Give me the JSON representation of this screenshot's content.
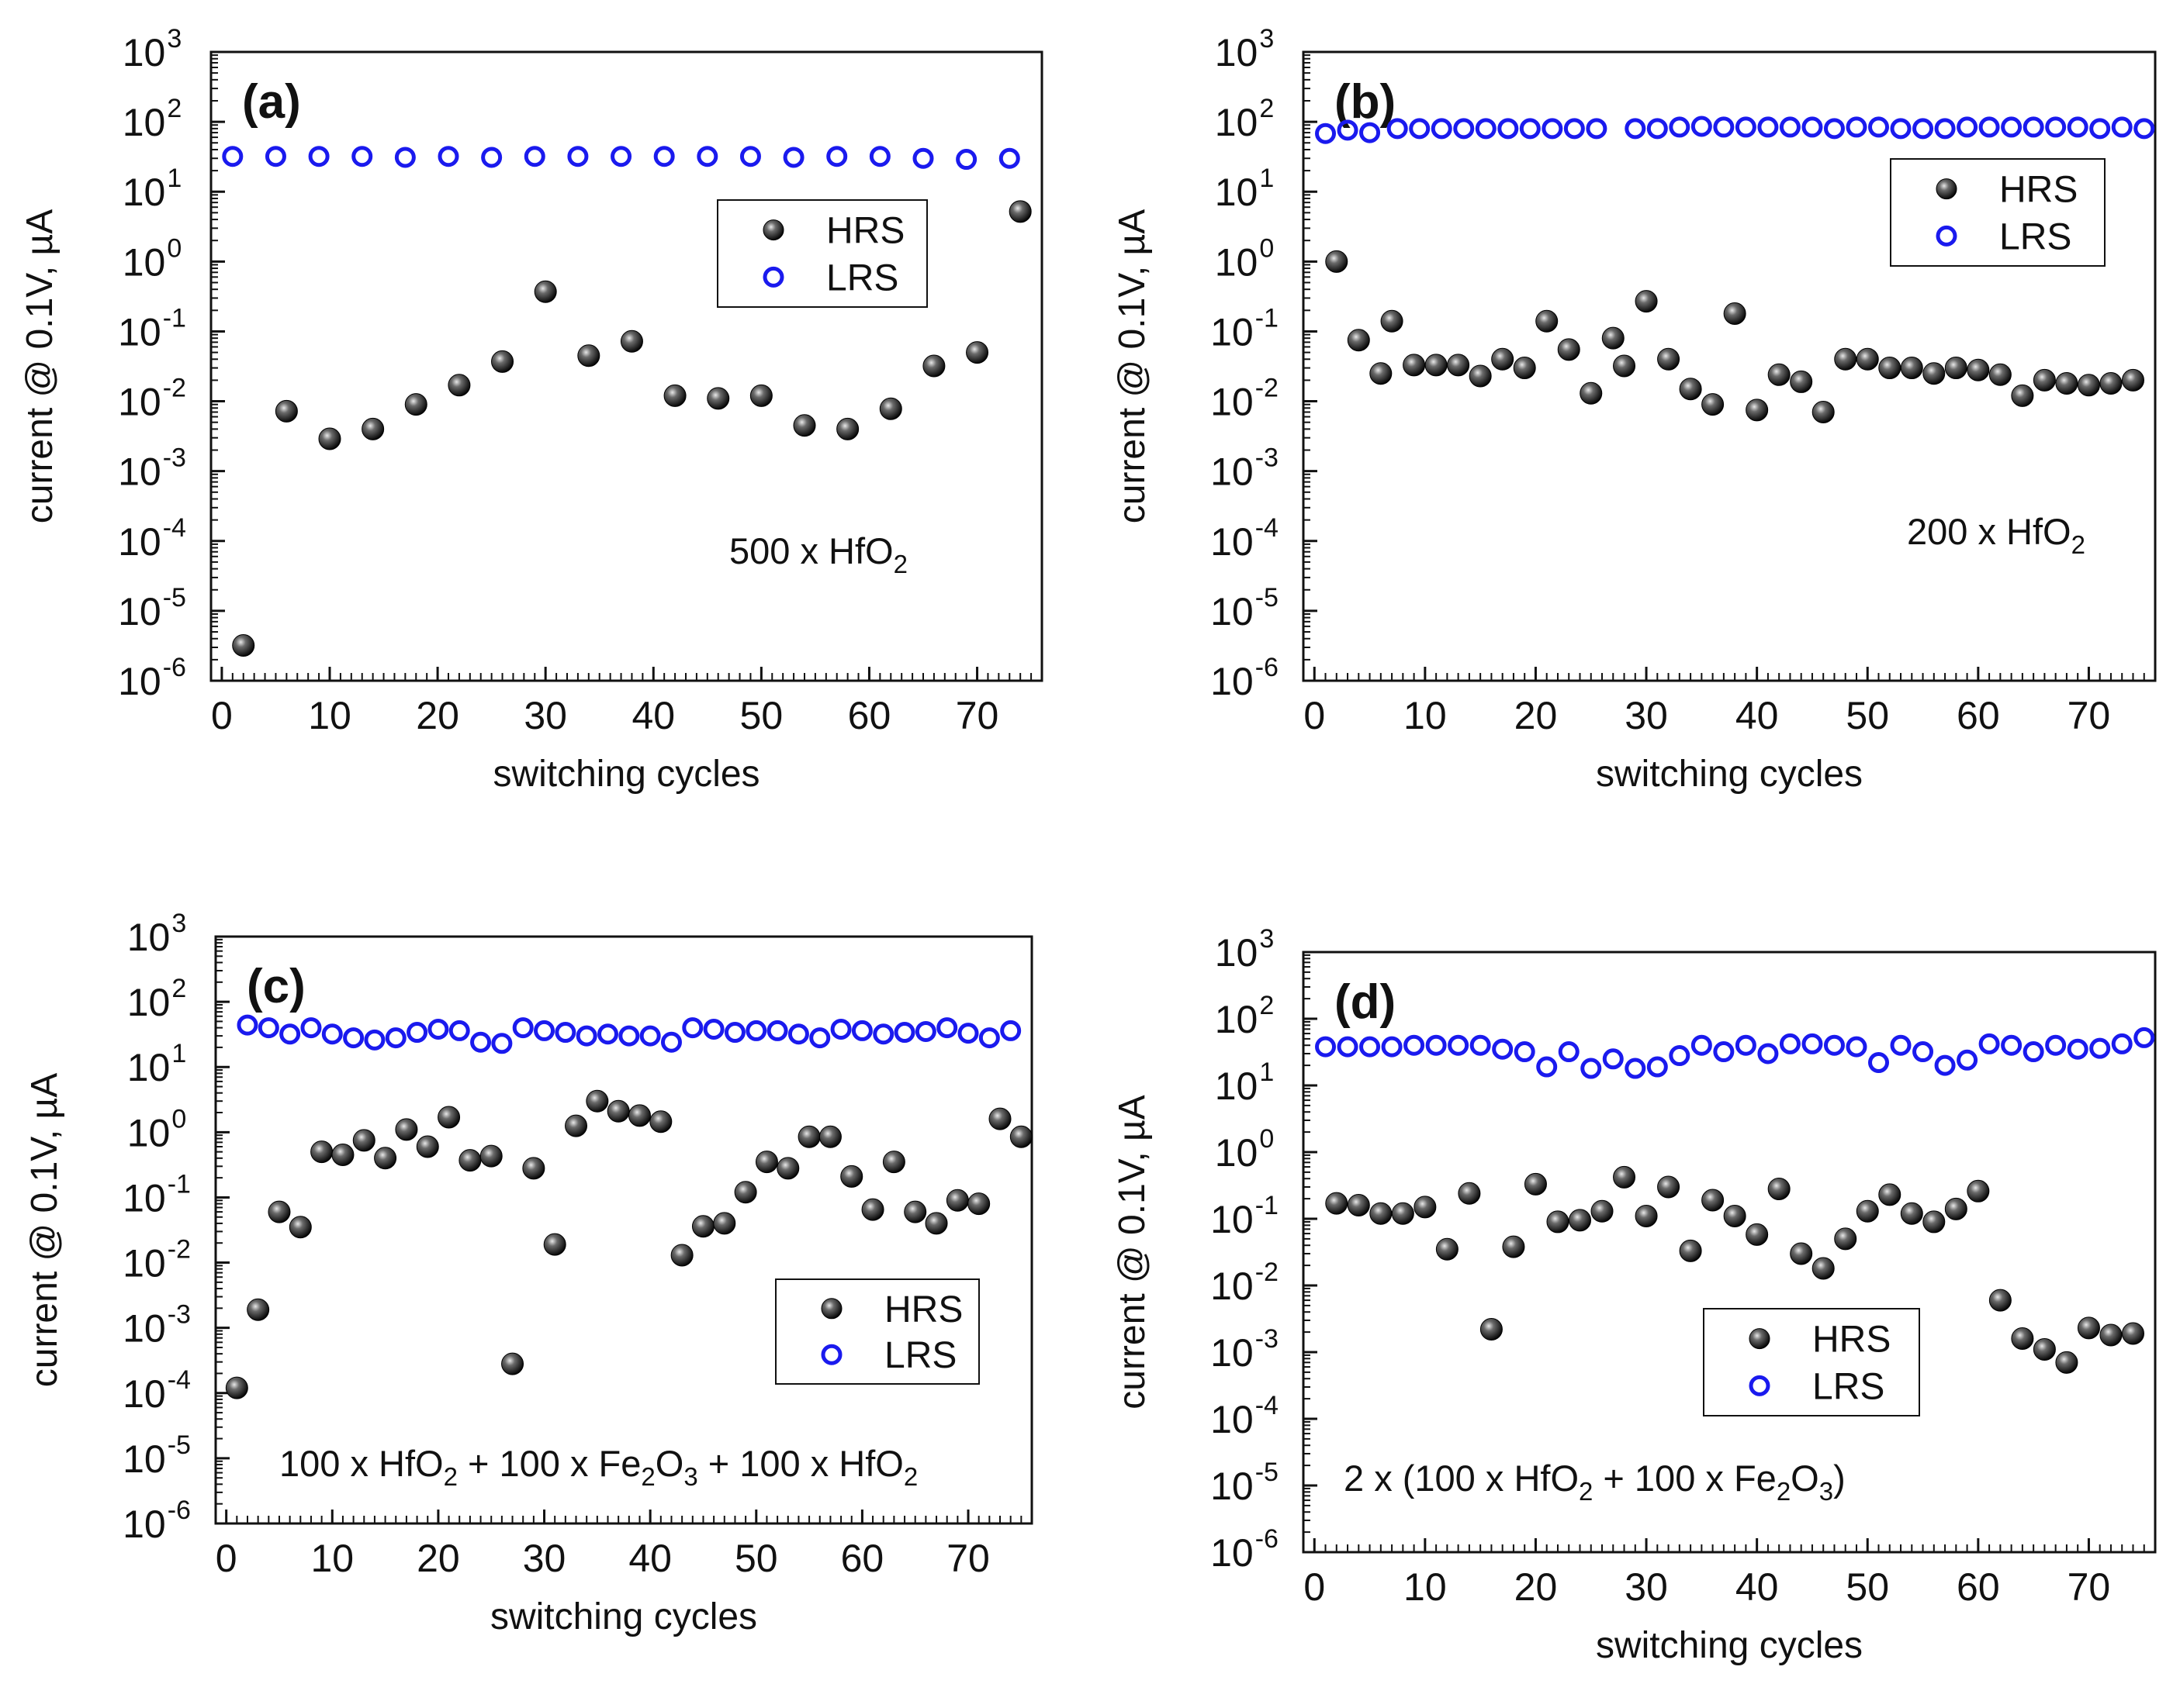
{
  "figure": {
    "colors": {
      "hrs": "#222222",
      "lrs": "#1a1aee",
      "axis": "#111111"
    }
  },
  "chart_data": [
    {
      "type": "scatter",
      "panel_label": "(a)",
      "annotation_parts": [
        "500 x HfO",
        "2"
      ],
      "xlabel": "switching cycles",
      "ylabel": "current @ 0.1V, µA",
      "yscale": "log",
      "xlim": [
        -1,
        76
      ],
      "ylim_exp": [
        -6,
        3
      ],
      "xticks": [
        "0",
        "10",
        "20",
        "30",
        "40",
        "50",
        "60",
        "70"
      ],
      "yticks": [
        "10",
        "10",
        "10",
        "10",
        "10",
        "10",
        "10",
        "10",
        "10",
        "10"
      ],
      "yexps": [
        "-6",
        "-5",
        "-4",
        "-3",
        "-2",
        "-1",
        "0",
        "1",
        "2",
        "3"
      ],
      "legend": {
        "hrs": "HRS",
        "lrs": "LRS",
        "position": "upper-right"
      },
      "series": [
        {
          "name": "HRS",
          "marker": "filled-sphere",
          "x": [
            2,
            6,
            10,
            14,
            18,
            22,
            26,
            30,
            34,
            38,
            42,
            46,
            50,
            54,
            58,
            62,
            66,
            70,
            74
          ],
          "y": [
            3.2e-06,
            0.0072,
            0.0029,
            0.004,
            0.009,
            0.017,
            0.037,
            0.37,
            0.045,
            0.072,
            0.012,
            0.011,
            0.012,
            0.0045,
            0.004,
            0.0078,
            0.032,
            0.05,
            5.2
          ]
        },
        {
          "name": "LRS",
          "marker": "open-circle",
          "x": [
            1,
            5,
            9,
            13,
            17,
            21,
            25,
            29,
            33,
            37,
            41,
            45,
            49,
            53,
            57,
            61,
            65,
            69,
            73
          ],
          "y": [
            32,
            32,
            32,
            32,
            31,
            32,
            31,
            32,
            32,
            32,
            32,
            32,
            32,
            31,
            32,
            32,
            30,
            29,
            30
          ]
        }
      ]
    },
    {
      "type": "scatter",
      "panel_label": "(b)",
      "annotation_parts": [
        "200 x HfO",
        "2"
      ],
      "xlabel": "switching cycles",
      "ylabel": "current @ 0.1V, µA",
      "yscale": "log",
      "xlim": [
        -1,
        76
      ],
      "ylim_exp": [
        -6,
        3
      ],
      "xticks": [
        "0",
        "10",
        "20",
        "30",
        "40",
        "50",
        "60",
        "70"
      ],
      "yticks": [
        "10",
        "10",
        "10",
        "10",
        "10",
        "10",
        "10",
        "10",
        "10",
        "10"
      ],
      "yexps": [
        "-6",
        "-5",
        "-4",
        "-3",
        "-2",
        "-1",
        "0",
        "1",
        "2",
        "3"
      ],
      "legend": {
        "hrs": "HRS",
        "lrs": "LRS",
        "position": "upper-right"
      },
      "series": [
        {
          "name": "HRS",
          "marker": "filled-sphere",
          "x": [
            2,
            4,
            6,
            7,
            9,
            11,
            13,
            15,
            17,
            19,
            21,
            23,
            25,
            27,
            28,
            30,
            32,
            34,
            36,
            38,
            40,
            42,
            44,
            46,
            48,
            50,
            52,
            54,
            56,
            58,
            60,
            62,
            64,
            66,
            68,
            70,
            72,
            74
          ],
          "y": [
            1.0,
            0.075,
            0.025,
            0.14,
            0.033,
            0.033,
            0.033,
            0.023,
            0.04,
            0.03,
            0.14,
            0.055,
            0.013,
            0.08,
            0.032,
            0.27,
            0.04,
            0.015,
            0.009,
            0.18,
            0.0075,
            0.024,
            0.019,
            0.007,
            0.04,
            0.04,
            0.03,
            0.03,
            0.025,
            0.03,
            0.028,
            0.024,
            0.012,
            0.02,
            0.018,
            0.017,
            0.018,
            0.02
          ]
        },
        {
          "name": "LRS",
          "marker": "open-circle",
          "x": [
            1,
            3,
            5,
            7.5,
            9.5,
            11.5,
            13.5,
            15.5,
            17.5,
            19.5,
            21.5,
            23.5,
            25.5,
            29,
            31,
            33,
            35,
            37,
            39,
            41,
            43,
            45,
            47,
            49,
            51,
            53,
            55,
            57,
            59,
            61,
            63,
            65,
            67,
            69,
            71,
            73,
            75
          ],
          "y": [
            68,
            76,
            70,
            80,
            80,
            80,
            80,
            80,
            80,
            80,
            80,
            80,
            80,
            80,
            80,
            84,
            86,
            84,
            84,
            84,
            84,
            84,
            80,
            84,
            84,
            80,
            80,
            80,
            84,
            84,
            84,
            84,
            84,
            84,
            80,
            84,
            80
          ]
        }
      ]
    },
    {
      "type": "scatter",
      "panel_label": "(c)",
      "annotation_parts": [
        "100 x HfO",
        "2",
        " + 100 x Fe",
        "2",
        "O",
        "3",
        " + 100 x HfO",
        "2"
      ],
      "xlabel": "switching cycles",
      "ylabel": "current @ 0.1V, µA",
      "yscale": "log",
      "xlim": [
        -1,
        76
      ],
      "ylim_exp": [
        -6,
        3
      ],
      "xticks": [
        "0",
        "10",
        "20",
        "30",
        "40",
        "50",
        "60",
        "70"
      ],
      "yticks": [
        "10",
        "10",
        "10",
        "10",
        "10",
        "10",
        "10",
        "10",
        "10",
        "10"
      ],
      "yexps": [
        "-6",
        "-5",
        "-4",
        "-3",
        "-2",
        "-1",
        "0",
        "1",
        "2",
        "3"
      ],
      "legend": {
        "hrs": "HRS",
        "lrs": "LRS",
        "position": "lower-right"
      },
      "series": [
        {
          "name": "HRS",
          "marker": "filled-sphere",
          "x": [
            1,
            3,
            5,
            7,
            9,
            11,
            13,
            15,
            17,
            19,
            21,
            23,
            25,
            27,
            29,
            31,
            33,
            35,
            37,
            39,
            41,
            43,
            45,
            47,
            49,
            51,
            53,
            55,
            57,
            59,
            61,
            63,
            65,
            67,
            69,
            71,
            73,
            75
          ],
          "y": [
            0.00012,
            0.0019,
            0.06,
            0.035,
            0.5,
            0.45,
            0.75,
            0.4,
            1.1,
            0.6,
            1.7,
            0.37,
            0.43,
            0.00028,
            0.28,
            0.019,
            1.25,
            3.0,
            2.1,
            1.8,
            1.45,
            0.013,
            0.036,
            0.04,
            0.12,
            0.35,
            0.28,
            0.85,
            0.85,
            0.21,
            0.065,
            0.35,
            0.06,
            0.04,
            0.09,
            0.08,
            1.6,
            0.85
          ]
        },
        {
          "name": "LRS",
          "marker": "open-circle",
          "x": [
            2,
            4,
            6,
            8,
            10,
            12,
            14,
            16,
            18,
            20,
            22,
            24,
            26,
            28,
            30,
            32,
            34,
            36,
            38,
            40,
            42,
            44,
            46,
            48,
            50,
            52,
            54,
            56,
            58,
            60,
            62,
            64,
            66,
            68,
            70,
            72,
            74
          ],
          "y": [
            44,
            40,
            32,
            40,
            32,
            28,
            26,
            28,
            34,
            38,
            36,
            24,
            23,
            40,
            36,
            34,
            30,
            32,
            30,
            30,
            24,
            40,
            38,
            34,
            36,
            36,
            32,
            28,
            38,
            36,
            32,
            34,
            35,
            40,
            33,
            28,
            36
          ]
        }
      ]
    },
    {
      "type": "scatter",
      "panel_label": "(d)",
      "annotation_parts": [
        "2 x (100 x HfO",
        "2",
        " + 100 x Fe",
        "2",
        "O",
        "3",
        ")"
      ],
      "xlabel": "switching cycles",
      "ylabel": "current @ 0.1V, µA",
      "yscale": "log",
      "xlim": [
        -1,
        76
      ],
      "ylim_exp": [
        -6,
        3
      ],
      "xticks": [
        "0",
        "10",
        "20",
        "30",
        "40",
        "50",
        "60",
        "70"
      ],
      "yticks": [
        "10",
        "10",
        "10",
        "10",
        "10",
        "10",
        "10",
        "10",
        "10",
        "10"
      ],
      "yexps": [
        "-6",
        "-5",
        "-4",
        "-3",
        "-2",
        "-1",
        "0",
        "1",
        "2",
        "3"
      ],
      "legend": {
        "hrs": "HRS",
        "lrs": "LRS",
        "position": "lower-right"
      },
      "series": [
        {
          "name": "HRS",
          "marker": "filled-sphere",
          "x": [
            2,
            4,
            6,
            8,
            10,
            12,
            14,
            16,
            18,
            20,
            22,
            24,
            26,
            28,
            30,
            32,
            34,
            36,
            38,
            40,
            42,
            44,
            46,
            48,
            50,
            52,
            54,
            56,
            58,
            60,
            62,
            64,
            66,
            68,
            70,
            72,
            74
          ],
          "y": [
            0.17,
            0.16,
            0.12,
            0.12,
            0.15,
            0.035,
            0.24,
            0.0022,
            0.038,
            0.33,
            0.09,
            0.095,
            0.13,
            0.42,
            0.11,
            0.3,
            0.033,
            0.19,
            0.11,
            0.058,
            0.28,
            0.03,
            0.018,
            0.05,
            0.13,
            0.23,
            0.12,
            0.09,
            0.14,
            0.26,
            0.006,
            0.0016,
            0.0011,
            0.0007,
            0.0023,
            0.0018,
            0.0019
          ]
        },
        {
          "name": "LRS",
          "marker": "open-circle",
          "x": [
            1,
            3,
            5,
            7,
            9,
            11,
            13,
            15,
            17,
            19,
            21,
            23,
            25,
            27,
            29,
            31,
            33,
            35,
            37,
            39,
            41,
            43,
            45,
            47,
            49,
            51,
            53,
            55,
            57,
            59,
            61,
            63,
            65,
            67,
            69,
            71,
            73,
            75
          ],
          "y": [
            38,
            38,
            38,
            38,
            40,
            40,
            40,
            40,
            35,
            32,
            19,
            32,
            18,
            25,
            18,
            19,
            28,
            40,
            32,
            40,
            30,
            42,
            42,
            40,
            38,
            22,
            40,
            32,
            20,
            24,
            42,
            40,
            32,
            40,
            35,
            36,
            42,
            52
          ]
        }
      ]
    }
  ]
}
